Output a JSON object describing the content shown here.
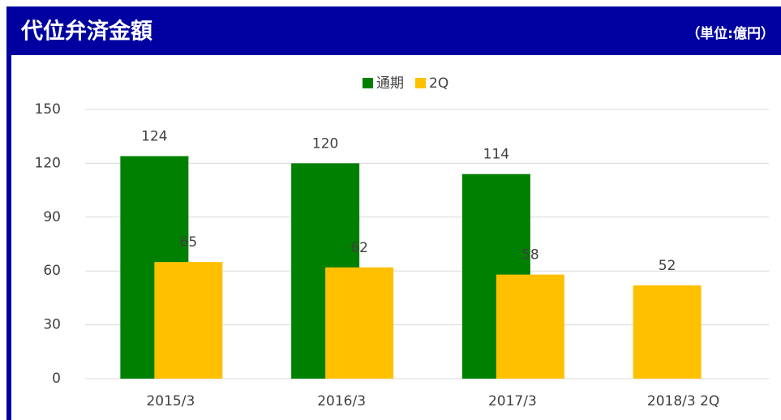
{
  "header": {
    "title": "代位弁済金額",
    "unit": "（単位:億円）"
  },
  "chart_data": {
    "type": "bar",
    "categories": [
      "2015/3",
      "2016/3",
      "2017/3",
      "2018/3 2Q"
    ],
    "series": [
      {
        "name": "通期",
        "color": "#008000",
        "values": [
          124,
          120,
          114,
          null
        ]
      },
      {
        "name": "2Q",
        "color": "#ffc000",
        "values": [
          65,
          62,
          58,
          52
        ]
      }
    ],
    "ylim": [
      0,
      150
    ],
    "yticks": [
      0,
      30,
      60,
      90,
      120,
      150
    ],
    "grid": true,
    "legend": "top"
  }
}
